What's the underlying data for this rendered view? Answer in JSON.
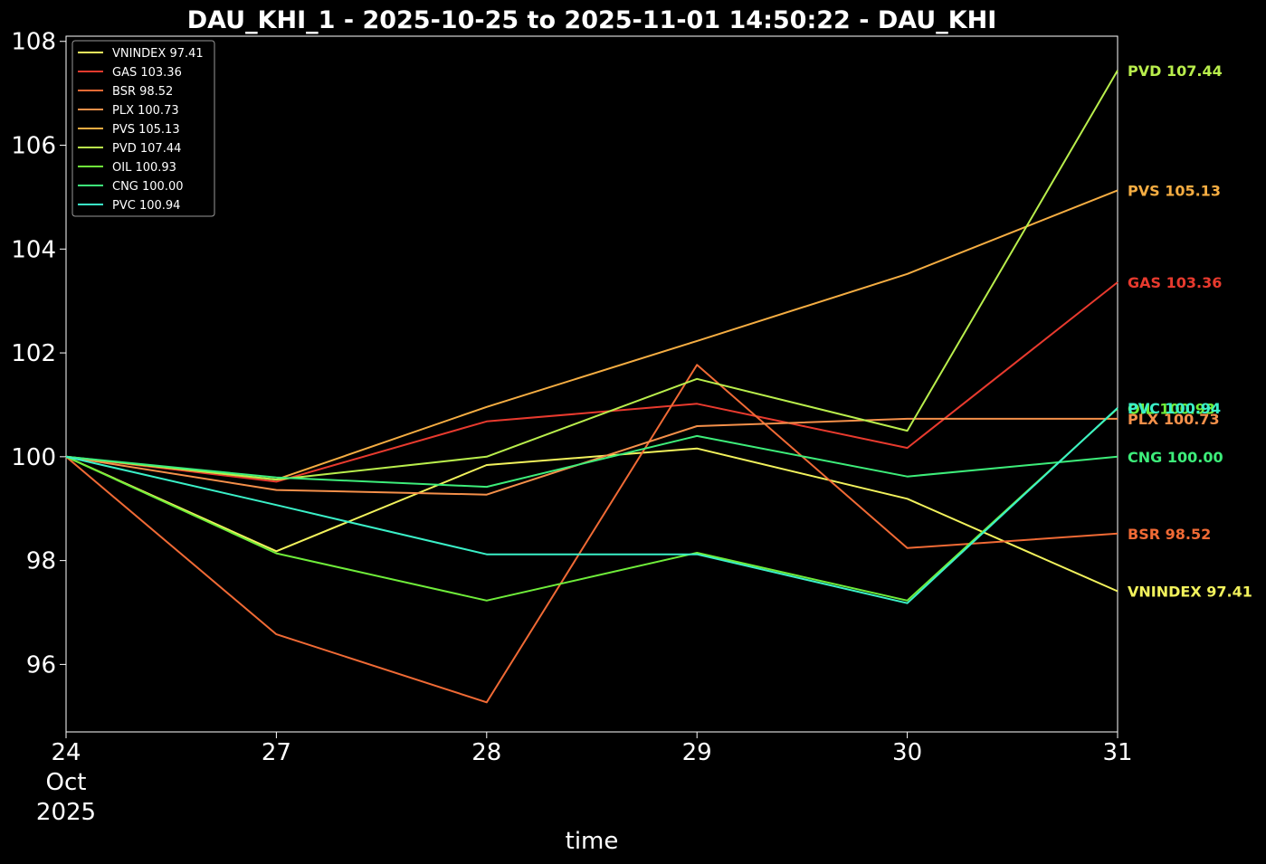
{
  "chart_data": {
    "type": "line",
    "title": "DAU_KHI_1 - 2025-10-25 to 2025-11-01 14:50:22 - DAU_KHI",
    "xlabel": "time",
    "ylabel": "",
    "x": [
      "2025-10-24",
      "2025-10-27",
      "2025-10-28",
      "2025-10-29",
      "2025-10-30",
      "2025-10-31"
    ],
    "x_tick_labels": [
      [
        "24",
        "Oct",
        "2025"
      ],
      [
        "27"
      ],
      [
        "28"
      ],
      [
        "29"
      ],
      [
        "30"
      ],
      [
        "31"
      ]
    ],
    "ylim": [
      94.7,
      108.1
    ],
    "y_ticks": [
      96,
      98,
      100,
      102,
      104,
      106,
      108
    ],
    "y_tick_labels": [
      "96",
      "98",
      "100",
      "102",
      "104",
      "106",
      "108"
    ],
    "grid": false,
    "legend_position": "top-left",
    "background": "#000000",
    "series": [
      {
        "name": "VNINDEX",
        "last_label": "97.41",
        "color": "#f2f25c",
        "values": [
          100,
          98.18,
          99.84,
          100.16,
          99.19,
          97.41
        ]
      },
      {
        "name": "GAS",
        "last_label": "103.36",
        "color": "#e83a2e",
        "values": [
          100,
          99.52,
          100.68,
          101.02,
          100.17,
          103.36
        ]
      },
      {
        "name": "BSR",
        "last_label": "98.52",
        "color": "#f06a35",
        "values": [
          100,
          96.58,
          95.27,
          101.77,
          98.24,
          98.52
        ]
      },
      {
        "name": "PLX",
        "last_label": "100.73",
        "color": "#f5904a",
        "values": [
          100,
          99.36,
          99.27,
          100.59,
          100.73,
          100.73
        ]
      },
      {
        "name": "PVS",
        "last_label": "105.13",
        "color": "#f5ad42",
        "values": [
          100,
          99.56,
          100.96,
          102.23,
          103.52,
          105.13
        ]
      },
      {
        "name": "PVD",
        "last_label": "107.44",
        "color": "#b9ee4c",
        "values": [
          100,
          99.56,
          100.0,
          101.5,
          100.5,
          107.44
        ]
      },
      {
        "name": "OIL",
        "last_label": "100.93",
        "color": "#6fed3a",
        "values": [
          100,
          98.14,
          97.23,
          98.15,
          97.23,
          100.93
        ]
      },
      {
        "name": "CNG",
        "last_label": "100.00",
        "color": "#3ded7a",
        "values": [
          100,
          99.6,
          99.42,
          100.4,
          99.62,
          100.0
        ]
      },
      {
        "name": "PVC",
        "last_label": "100.94",
        "color": "#3af0c8",
        "values": [
          100,
          99.07,
          98.12,
          98.12,
          97.18,
          100.94
        ]
      }
    ]
  }
}
